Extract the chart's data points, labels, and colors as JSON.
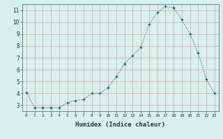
{
  "x": [
    0,
    1,
    2,
    3,
    4,
    5,
    6,
    7,
    8,
    9,
    10,
    11,
    12,
    13,
    14,
    15,
    16,
    17,
    18,
    19,
    20,
    21,
    22,
    23
  ],
  "y": [
    4.1,
    2.8,
    2.8,
    2.8,
    2.8,
    3.2,
    3.4,
    3.5,
    4.0,
    4.0,
    4.5,
    5.4,
    6.5,
    7.2,
    7.9,
    9.8,
    10.8,
    11.3,
    11.2,
    10.2,
    9.0,
    7.4,
    5.2,
    4.0
  ],
  "xlabel": "Humidex (Indice chaleur)",
  "bg_color": "#d6f0ee",
  "line_color": "#1a6b5a",
  "grid_color": "#e8a0a0",
  "ylim": [
    2.5,
    11.5
  ],
  "xlim": [
    -0.5,
    23.5
  ],
  "yticks": [
    3,
    4,
    5,
    6,
    7,
    8,
    9,
    10,
    11
  ],
  "xticks": [
    0,
    1,
    2,
    3,
    4,
    5,
    6,
    7,
    8,
    9,
    10,
    11,
    12,
    13,
    14,
    15,
    16,
    17,
    18,
    19,
    20,
    21,
    22,
    23
  ]
}
